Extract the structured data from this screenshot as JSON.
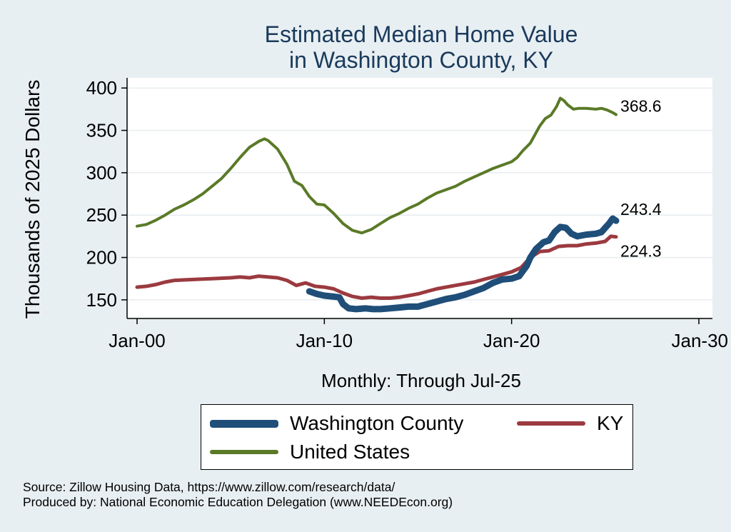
{
  "chart_data": {
    "type": "line",
    "title": "Estimated Median Home Value",
    "subtitle": "in Washington County, KY",
    "xlabel": "Monthly: Through Jul-25",
    "ylabel": "Thousands of 2025 Dollars",
    "xlim": [
      2000,
      2030
    ],
    "ylim": [
      128,
      412
    ],
    "x_ticks": [
      {
        "value": 2000,
        "label": "Jan-00"
      },
      {
        "value": 2010,
        "label": "Jan-10"
      },
      {
        "value": 2020,
        "label": "Jan-20"
      },
      {
        "value": 2030,
        "label": "Jan-30"
      }
    ],
    "y_ticks": [
      150,
      200,
      250,
      300,
      350,
      400
    ],
    "grid": "horizontal",
    "legend_position": "bottom",
    "series": [
      {
        "name": "Washington County",
        "color": "#1f4e79",
        "end_label": "243.4",
        "points": [
          [
            2009.2,
            160
          ],
          [
            2009.6,
            157
          ],
          [
            2010.0,
            155
          ],
          [
            2010.4,
            154
          ],
          [
            2010.8,
            153
          ],
          [
            2011.0,
            145
          ],
          [
            2011.3,
            140
          ],
          [
            2011.7,
            139
          ],
          [
            2012.2,
            140
          ],
          [
            2012.6,
            139
          ],
          [
            2013.0,
            139
          ],
          [
            2013.5,
            140
          ],
          [
            2014.0,
            141
          ],
          [
            2014.5,
            142
          ],
          [
            2015.0,
            142
          ],
          [
            2015.5,
            145
          ],
          [
            2016.0,
            148
          ],
          [
            2016.5,
            151
          ],
          [
            2017.0,
            153
          ],
          [
            2017.5,
            156
          ],
          [
            2018.0,
            160
          ],
          [
            2018.5,
            164
          ],
          [
            2019.0,
            170
          ],
          [
            2019.5,
            174
          ],
          [
            2020.0,
            175
          ],
          [
            2020.4,
            178
          ],
          [
            2020.8,
            190
          ],
          [
            2021.0,
            200
          ],
          [
            2021.3,
            210
          ],
          [
            2021.7,
            218
          ],
          [
            2022.0,
            220
          ],
          [
            2022.3,
            230
          ],
          [
            2022.6,
            236
          ],
          [
            2022.9,
            235
          ],
          [
            2023.2,
            228
          ],
          [
            2023.5,
            225
          ],
          [
            2024.0,
            227
          ],
          [
            2024.5,
            228
          ],
          [
            2024.8,
            230
          ],
          [
            2025.0,
            235
          ],
          [
            2025.2,
            240
          ],
          [
            2025.4,
            246
          ],
          [
            2025.58,
            243.4
          ]
        ]
      },
      {
        "name": "KY",
        "color": "#9b3a3f",
        "end_label": "224.3",
        "points": [
          [
            2000.0,
            165
          ],
          [
            2000.5,
            166
          ],
          [
            2001.0,
            168
          ],
          [
            2001.5,
            171
          ],
          [
            2002.0,
            173
          ],
          [
            2003.0,
            174
          ],
          [
            2004.0,
            175
          ],
          [
            2005.0,
            176
          ],
          [
            2005.5,
            177
          ],
          [
            2006.0,
            176
          ],
          [
            2006.5,
            178
          ],
          [
            2007.0,
            177
          ],
          [
            2007.5,
            176
          ],
          [
            2008.0,
            173
          ],
          [
            2008.5,
            167
          ],
          [
            2009.0,
            170
          ],
          [
            2009.5,
            166
          ],
          [
            2010.0,
            165
          ],
          [
            2010.5,
            163
          ],
          [
            2011.0,
            158
          ],
          [
            2011.5,
            154
          ],
          [
            2012.0,
            152
          ],
          [
            2012.5,
            153
          ],
          [
            2013.0,
            152
          ],
          [
            2013.5,
            152
          ],
          [
            2014.0,
            153
          ],
          [
            2014.5,
            155
          ],
          [
            2015.0,
            157
          ],
          [
            2015.5,
            160
          ],
          [
            2016.0,
            163
          ],
          [
            2016.5,
            165
          ],
          [
            2017.0,
            167
          ],
          [
            2017.5,
            169
          ],
          [
            2018.0,
            171
          ],
          [
            2018.5,
            174
          ],
          [
            2019.0,
            177
          ],
          [
            2019.5,
            180
          ],
          [
            2020.0,
            183
          ],
          [
            2020.5,
            188
          ],
          [
            2021.0,
            200
          ],
          [
            2021.5,
            207
          ],
          [
            2022.0,
            208
          ],
          [
            2022.5,
            213
          ],
          [
            2023.0,
            214
          ],
          [
            2023.5,
            214
          ],
          [
            2024.0,
            216
          ],
          [
            2024.5,
            217
          ],
          [
            2025.0,
            219
          ],
          [
            2025.3,
            225
          ],
          [
            2025.58,
            224.3
          ]
        ]
      },
      {
        "name": "United States",
        "color": "#5a7a27",
        "end_label": "368.6",
        "points": [
          [
            2000.0,
            237
          ],
          [
            2000.5,
            239
          ],
          [
            2001.0,
            244
          ],
          [
            2001.5,
            250
          ],
          [
            2002.0,
            257
          ],
          [
            2002.5,
            262
          ],
          [
            2003.0,
            268
          ],
          [
            2003.5,
            275
          ],
          [
            2004.0,
            284
          ],
          [
            2004.5,
            293
          ],
          [
            2005.0,
            305
          ],
          [
            2005.5,
            318
          ],
          [
            2006.0,
            330
          ],
          [
            2006.5,
            337
          ],
          [
            2006.8,
            340
          ],
          [
            2007.0,
            338
          ],
          [
            2007.5,
            328
          ],
          [
            2008.0,
            310
          ],
          [
            2008.4,
            290
          ],
          [
            2008.8,
            285
          ],
          [
            2009.2,
            272
          ],
          [
            2009.6,
            263
          ],
          [
            2010.0,
            262
          ],
          [
            2010.5,
            252
          ],
          [
            2011.0,
            240
          ],
          [
            2011.5,
            232
          ],
          [
            2012.0,
            229
          ],
          [
            2012.5,
            233
          ],
          [
            2013.0,
            240
          ],
          [
            2013.5,
            247
          ],
          [
            2014.0,
            252
          ],
          [
            2014.5,
            258
          ],
          [
            2015.0,
            263
          ],
          [
            2015.5,
            270
          ],
          [
            2016.0,
            276
          ],
          [
            2016.5,
            280
          ],
          [
            2017.0,
            284
          ],
          [
            2017.5,
            290
          ],
          [
            2018.0,
            295
          ],
          [
            2018.5,
            300
          ],
          [
            2019.0,
            305
          ],
          [
            2019.5,
            309
          ],
          [
            2020.0,
            313
          ],
          [
            2020.3,
            318
          ],
          [
            2020.6,
            326
          ],
          [
            2021.0,
            335
          ],
          [
            2021.5,
            355
          ],
          [
            2021.8,
            364
          ],
          [
            2022.1,
            368
          ],
          [
            2022.4,
            378
          ],
          [
            2022.6,
            388
          ],
          [
            2022.8,
            385
          ],
          [
            2023.0,
            380
          ],
          [
            2023.3,
            375
          ],
          [
            2023.6,
            376
          ],
          [
            2024.0,
            376
          ],
          [
            2024.5,
            375
          ],
          [
            2024.8,
            376
          ],
          [
            2025.1,
            374
          ],
          [
            2025.4,
            371
          ],
          [
            2025.58,
            368.6
          ]
        ]
      }
    ]
  },
  "legend": {
    "items": [
      {
        "label": "Washington County",
        "color": "#1f4e79"
      },
      {
        "label": "KY",
        "color": "#9b3a3f"
      },
      {
        "label": "United States",
        "color": "#5a7a27"
      }
    ]
  },
  "source": {
    "line1": "Source: Zillow Housing Data, https://www.zillow.com/research/data/",
    "line2": "Produced by: National Economic Education Delegation (www.NEEDEcon.org)"
  }
}
